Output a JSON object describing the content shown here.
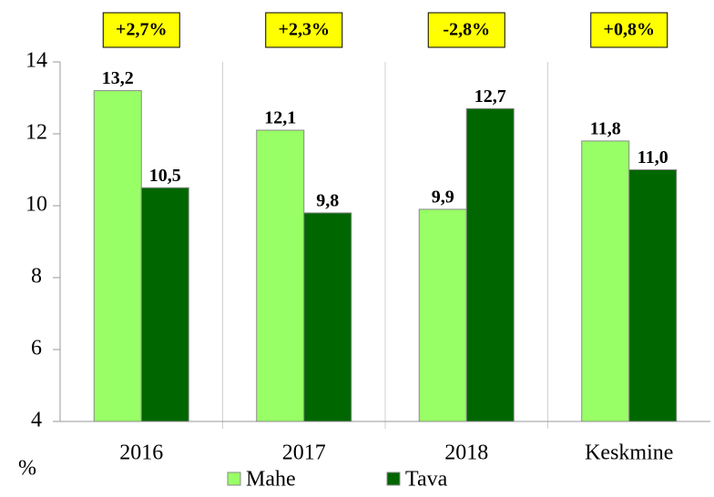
{
  "chart_data": {
    "type": "bar",
    "categories": [
      "2016",
      "2017",
      "2018",
      "Keskmine"
    ],
    "series": [
      {
        "name": "Mahe",
        "color": "#99ff66",
        "values": [
          13.2,
          12.1,
          9.9,
          11.8
        ],
        "value_labels": [
          "13,2",
          "12,1",
          "9,9",
          "11,8"
        ]
      },
      {
        "name": "Tava",
        "color": "#006600",
        "values": [
          10.5,
          9.8,
          12.7,
          11.0
        ],
        "value_labels": [
          "10,5",
          "9,8",
          "12,7",
          "11,0"
        ]
      }
    ],
    "annotations": [
      "+2,7%",
      "+2,3%",
      "-2,8%",
      "+0,8%"
    ],
    "y_label": "%",
    "ylim": [
      4,
      14
    ],
    "yticks": [
      4,
      6,
      8,
      10,
      12,
      14
    ]
  }
}
